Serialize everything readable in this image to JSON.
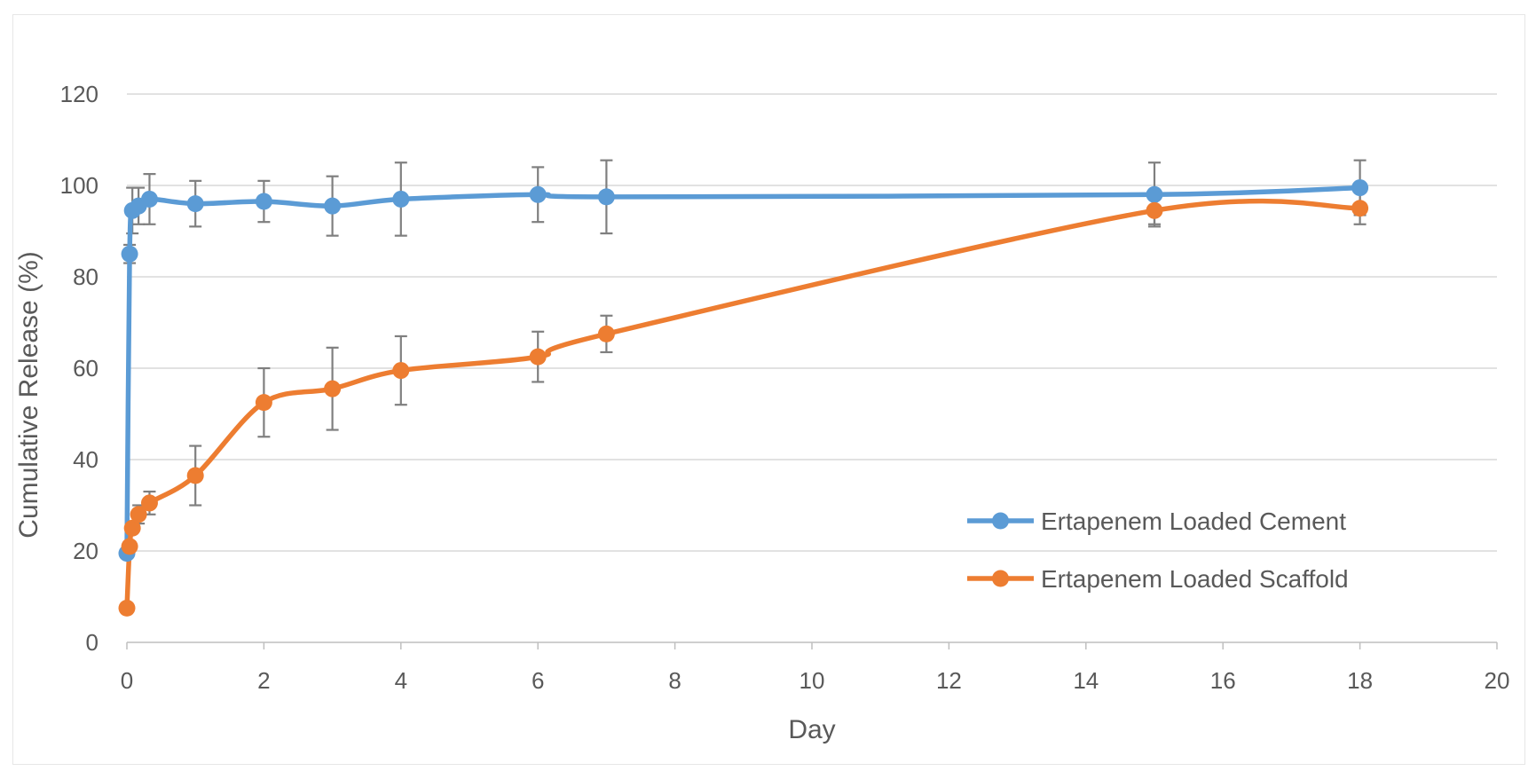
{
  "chart_data": {
    "type": "line",
    "title": "",
    "xlabel": "Day",
    "ylabel": "Cumulative Release (%)",
    "xlim": [
      0,
      20
    ],
    "ylim": [
      0,
      120
    ],
    "x_ticks": [
      "0",
      "2",
      "4",
      "6",
      "8",
      "10",
      "12",
      "14",
      "16",
      "18",
      "20"
    ],
    "y_ticks": [
      "0",
      "20",
      "40",
      "60",
      "80",
      "100",
      "120"
    ],
    "grid": "horizontal",
    "legend_position": "bottom-right",
    "error_bars": true,
    "smoothed": true,
    "series": [
      {
        "name": "Ertapenem Loaded Cement",
        "color": "#5b9bd5",
        "x": [
          0,
          0.04,
          0.08,
          0.17,
          0.33,
          1,
          2,
          3,
          4,
          6,
          7,
          15,
          18
        ],
        "y": [
          19.5,
          85,
          94.5,
          95.5,
          97,
          96,
          96.5,
          95.5,
          97,
          98,
          97.5,
          98,
          99.5
        ],
        "error": [
          0,
          2,
          5,
          4,
          5.5,
          5,
          4.5,
          6.5,
          8,
          6,
          8,
          7,
          6
        ]
      },
      {
        "name": "Ertapenem Loaded Scaffold",
        "color": "#ed7d31",
        "x": [
          0,
          0.04,
          0.08,
          0.17,
          0.33,
          1,
          2,
          3,
          4,
          6,
          7,
          15,
          18
        ],
        "y": [
          7.5,
          21,
          25,
          28,
          30.5,
          36.5,
          52.5,
          55.5,
          59.5,
          62.5,
          67.5,
          94.5,
          95
        ],
        "error": [
          1,
          0,
          0,
          2,
          2.5,
          6.5,
          7.5,
          9,
          7.5,
          5.5,
          4,
          3,
          3.5
        ]
      }
    ]
  }
}
